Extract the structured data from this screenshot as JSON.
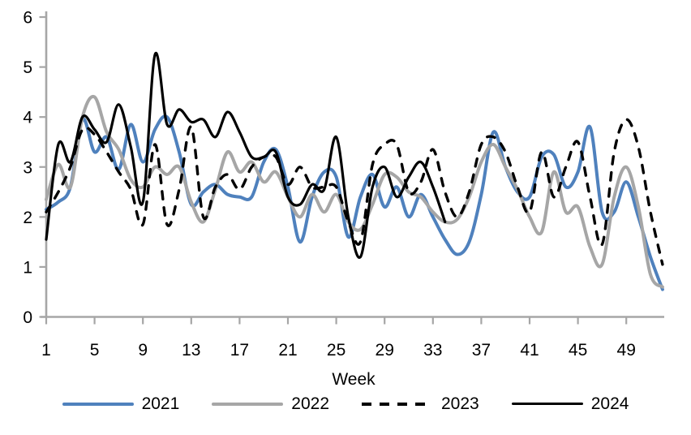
{
  "chart_data": {
    "type": "line",
    "title": "",
    "xlabel": "Week",
    "ylabel": "",
    "xlim": [
      1,
      52
    ],
    "ylim": [
      0,
      6
    ],
    "grid": false,
    "legend_position": "bottom",
    "axis_color": "#A6A6A6",
    "text_color": "#000000",
    "x_ticks": [
      1,
      5,
      9,
      13,
      17,
      21,
      25,
      29,
      33,
      37,
      41,
      45,
      49
    ],
    "y_ticks": [
      0,
      1,
      2,
      3,
      4,
      5,
      6
    ],
    "x": [
      1,
      2,
      3,
      4,
      5,
      6,
      7,
      8,
      9,
      10,
      11,
      12,
      13,
      14,
      15,
      16,
      17,
      18,
      19,
      20,
      21,
      22,
      23,
      24,
      25,
      26,
      27,
      28,
      29,
      30,
      31,
      32,
      33,
      34,
      35,
      36,
      37,
      38,
      39,
      40,
      41,
      42,
      43,
      44,
      45,
      46,
      47,
      48,
      49,
      50,
      51,
      52
    ],
    "series": [
      {
        "name": "2021",
        "color": "#4F81BD",
        "dash": "solid",
        "width": 4,
        "values": [
          2.15,
          2.3,
          2.6,
          3.95,
          3.3,
          3.6,
          2.95,
          3.85,
          3.1,
          3.75,
          4.0,
          3.3,
          2.25,
          2.5,
          2.65,
          2.45,
          2.4,
          2.4,
          3.1,
          3.35,
          2.6,
          1.5,
          2.4,
          2.9,
          2.8,
          1.6,
          2.4,
          2.85,
          2.2,
          2.6,
          2.0,
          2.45,
          2.0,
          1.55,
          1.25,
          1.5,
          2.45,
          3.7,
          3.0,
          2.5,
          2.4,
          3.2,
          3.25,
          2.6,
          2.9,
          3.8,
          2.1,
          2.1,
          2.7,
          2.0,
          1.2,
          0.55
        ]
      },
      {
        "name": "2022",
        "color": "#A6A6A6",
        "dash": "solid",
        "width": 4,
        "values": [
          2.35,
          3.05,
          2.6,
          4.0,
          4.4,
          3.7,
          3.35,
          2.75,
          2.6,
          3.0,
          2.85,
          3.0,
          2.3,
          1.9,
          2.55,
          3.3,
          2.9,
          3.1,
          2.7,
          2.9,
          2.4,
          2.0,
          2.45,
          2.1,
          2.45,
          1.9,
          1.75,
          2.25,
          2.85,
          2.8,
          2.5,
          2.4,
          2.1,
          1.9,
          1.95,
          2.4,
          3.1,
          3.45,
          3.0,
          2.55,
          2.0,
          1.7,
          2.9,
          2.1,
          2.2,
          1.4,
          1.05,
          2.4,
          3.0,
          2.2,
          0.85,
          0.6
        ]
      },
      {
        "name": "2023",
        "color": "#000000",
        "dash": "dashed",
        "width": 3.4,
        "values": [
          2.1,
          2.5,
          3.0,
          3.75,
          3.65,
          3.3,
          2.9,
          2.55,
          1.85,
          3.45,
          1.85,
          2.55,
          3.8,
          2.0,
          2.6,
          2.85,
          2.55,
          3.0,
          3.2,
          3.2,
          2.65,
          3.0,
          2.6,
          2.6,
          2.6,
          1.9,
          1.5,
          3.05,
          3.45,
          3.45,
          2.5,
          2.7,
          3.35,
          2.5,
          2.0,
          2.5,
          3.45,
          3.6,
          3.3,
          2.6,
          2.1,
          3.3,
          2.4,
          3.0,
          3.5,
          2.4,
          1.45,
          3.3,
          3.95,
          3.4,
          2.1,
          1.05
        ]
      },
      {
        "name": "2024",
        "color": "#000000",
        "dash": "solid",
        "width": 3.2,
        "values": [
          1.55,
          3.45,
          3.1,
          4.0,
          3.75,
          3.5,
          4.25,
          3.4,
          2.3,
          5.25,
          3.85,
          4.15,
          3.9,
          3.95,
          3.6,
          4.1,
          3.7,
          3.2,
          3.2,
          3.3,
          2.4,
          2.25,
          2.65,
          2.55,
          3.6,
          2.0,
          1.2,
          2.6,
          3.0,
          2.4,
          2.8,
          3.1,
          2.6,
          1.9
        ]
      }
    ]
  }
}
